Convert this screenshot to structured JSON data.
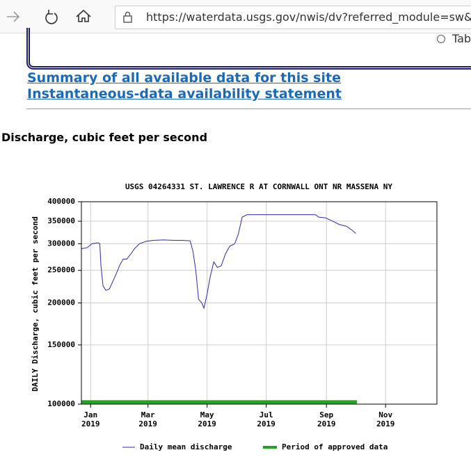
{
  "browser": {
    "url": "https://waterdata.usgs.gov/nwis/dv?referred_module=sw&site_no"
  },
  "form": {
    "option": "Tab"
  },
  "links": [
    "Summary of all available data for this site",
    "Instantaneous-data availability statement"
  ],
  "heading": "Discharge, cubic feet per second",
  "chart_data": {
    "type": "line",
    "title": "USGS 04264331 ST. LAWRENCE R AT CORNWALL ONT NR MASSENA NY",
    "y_label": "DAILY Discharge, cubic feet per second",
    "log_y": true,
    "grid": true,
    "xlim": [
      2018.974,
      2019.978
    ],
    "ylim": [
      100000,
      400000
    ],
    "xticks": [
      {
        "value": 2019.0,
        "label": "Jan\n2019"
      },
      {
        "value": 2019.162,
        "label": "Mar\n2019"
      },
      {
        "value": 2019.329,
        "label": "May\n2019"
      },
      {
        "value": 2019.496,
        "label": "Jul\n2019"
      },
      {
        "value": 2019.666,
        "label": "Sep\n2019"
      },
      {
        "value": 2019.833,
        "label": "Nov\n2019"
      }
    ],
    "yticks": [
      100000,
      150000,
      200000,
      250000,
      300000,
      350000,
      400000
    ],
    "series": [
      {
        "name": "Daily mean discharge",
        "color": "#2a2ab0",
        "x": [
          2018.975,
          2018.99,
          2019.004,
          2019.02,
          2019.026,
          2019.029,
          2019.035,
          2019.043,
          2019.053,
          2019.063,
          2019.073,
          2019.083,
          2019.092,
          2019.102,
          2019.114,
          2019.124,
          2019.138,
          2019.157,
          2019.177,
          2019.206,
          2019.236,
          2019.259,
          2019.281,
          2019.289,
          2019.297,
          2019.305,
          2019.314,
          2019.32,
          2019.328,
          2019.338,
          2019.348,
          2019.358,
          2019.369,
          2019.381,
          2019.393,
          2019.407,
          2019.417,
          2019.428,
          2019.442,
          2019.491,
          2019.55,
          2019.609,
          2019.635,
          2019.644,
          2019.664,
          2019.684,
          2019.703,
          2019.723,
          2019.737,
          2019.749
        ],
        "values": [
          290000,
          292000,
          300000,
          302000,
          300000,
          260000,
          225000,
          218000,
          220000,
          232000,
          245000,
          260000,
          270000,
          270000,
          280000,
          290000,
          300000,
          305000,
          307000,
          308000,
          307000,
          307000,
          306000,
          285000,
          250000,
          205000,
          200000,
          193000,
          210000,
          240000,
          265000,
          255000,
          258000,
          280000,
          295000,
          300000,
          320000,
          360000,
          366000,
          366000,
          366000,
          366000,
          366000,
          360000,
          358000,
          350000,
          342000,
          338000,
          330000,
          322000
        ]
      },
      {
        "name": "Period of approved data",
        "color": "#1fa51f",
        "x": [
          2018.975,
          2019.752
        ],
        "values": [
          101500,
          101500
        ]
      }
    ]
  }
}
